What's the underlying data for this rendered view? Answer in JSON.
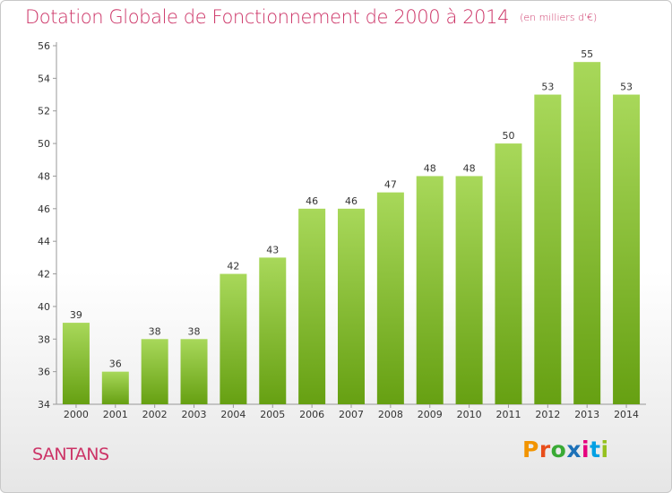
{
  "header": {
    "title": "Dotation Globale de Fonctionnement de 2000 à 2014",
    "unit": "(en milliers d'€)"
  },
  "footer": {
    "commune": "SANTANS",
    "brand": "Proxiti",
    "brand_colors": [
      "#f29400",
      "#e84e1b",
      "#3aaa35",
      "#1d71b8",
      "#e6007e",
      "#00a0e3",
      "#95c11f"
    ]
  },
  "colors": {
    "title": "#cc3366",
    "bar_light": "#a8d85a",
    "bar_dark": "#66a012",
    "axis": "#999999",
    "text": "#333333"
  },
  "chart_data": {
    "type": "bar",
    "title": "Dotation Globale de Fonctionnement de 2000 à 2014",
    "subtitle": "(en milliers d'€)",
    "xlabel": "",
    "ylabel": "",
    "categories": [
      "2000",
      "2001",
      "2002",
      "2003",
      "2004",
      "2005",
      "2006",
      "2007",
      "2008",
      "2009",
      "2010",
      "2011",
      "2012",
      "2013",
      "2014"
    ],
    "values": [
      39,
      36,
      38,
      38,
      42,
      43,
      46,
      46,
      47,
      48,
      48,
      50,
      53,
      55,
      53
    ],
    "ylim": [
      34,
      56
    ],
    "yticks": [
      34,
      36,
      38,
      40,
      42,
      44,
      46,
      48,
      50,
      52,
      54,
      56
    ],
    "grid": false,
    "data_labels": true
  }
}
